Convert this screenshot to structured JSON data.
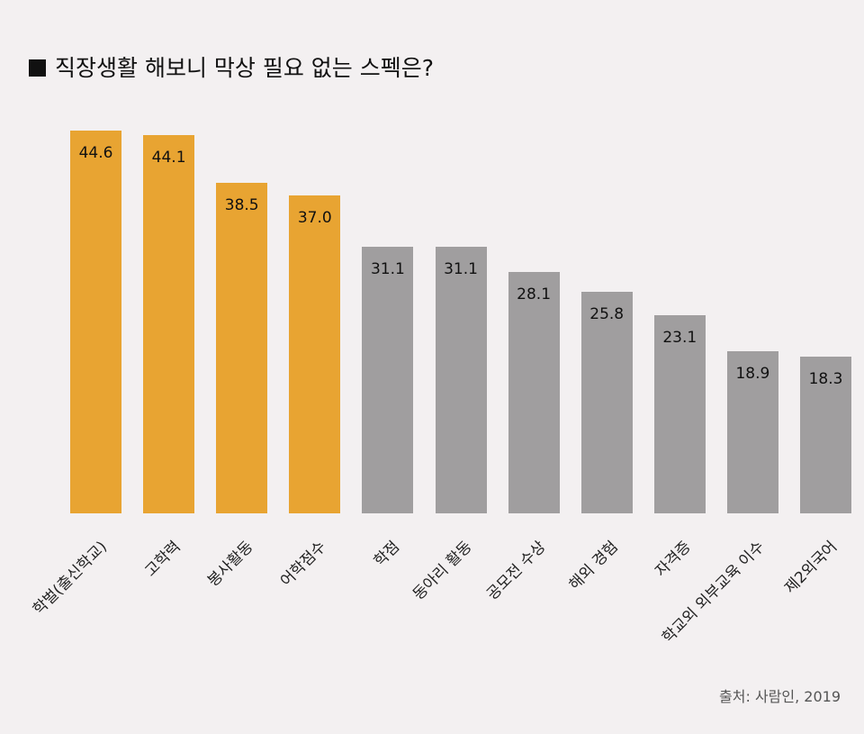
{
  "chart_data": {
    "type": "bar",
    "title": "직장생활 해보니 막상 필요 없는 스펙은?",
    "categories": [
      "학벌(출신학교)",
      "고학력",
      "봉사활동",
      "어학점수",
      "학점",
      "동아리 활동",
      "공모전 수상",
      "해외 경험",
      "자격증",
      "학교외 외부교육 이수",
      "제2외국어"
    ],
    "values": [
      44.6,
      44.1,
      38.5,
      37.0,
      31.1,
      31.1,
      28.1,
      25.8,
      23.1,
      18.9,
      18.3
    ],
    "value_labels": [
      "44.6",
      "44.1",
      "38.5",
      "37.0",
      "31.1",
      "31.1",
      "28.1",
      "25.8",
      "23.1",
      "18.9",
      "18.3"
    ],
    "highlighted_count": 4,
    "colors": {
      "highlight": "#e8a432",
      "normal": "#a09e9f"
    },
    "xlabel": "",
    "ylabel": "",
    "ylim": [
      0,
      44.6
    ],
    "grid": false,
    "legend": "none",
    "source": "출처: 사람인, 2019"
  }
}
